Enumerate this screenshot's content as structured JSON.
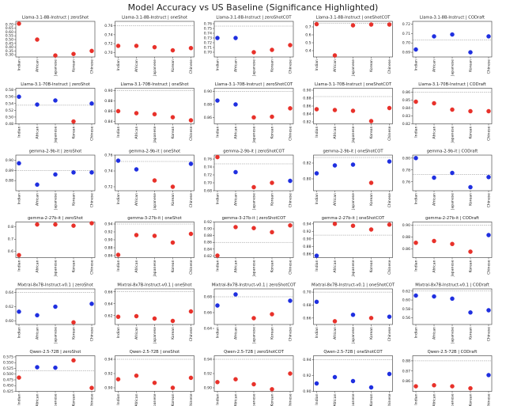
{
  "title": "Model Accuracy vs US Baseline (Significance Highlighted)",
  "chart_data": [
    {
      "type": "scatter",
      "title": "Llama-3.1-8B-Instruct | zeroShot",
      "categories": [
        "Indian",
        "African",
        "Japanese",
        "Korean",
        "Chinese"
      ],
      "values": [
        0.71,
        0.5,
        0.29,
        0.31,
        0.35
      ],
      "point_colors": [
        "#e8312a",
        "#e8312a",
        "#e8312a",
        "#e8312a",
        "#e8312a"
      ],
      "ylim": [
        0.27,
        0.74
      ],
      "yticks": [
        {
          "value": 0.3,
          "label": "0.30"
        },
        0.35,
        {
          "value": 0.4,
          "label": "0.40"
        },
        0.45,
        {
          "value": 0.5,
          "label": "0.50"
        },
        0.55,
        {
          "value": 0.6,
          "label": "0.60"
        },
        0.65,
        {
          "value": 0.7,
          "label": "0.70"
        }
      ]
    },
    {
      "type": "scatter",
      "title": "Llama-3.1-8B-Instruct | oneShot",
      "categories": [
        "Indian",
        "African",
        "Japanese",
        "Korean",
        "Chinese"
      ],
      "values": [
        0.715,
        0.715,
        0.712,
        0.705,
        0.71
      ],
      "point_colors": [
        "#e8312a",
        "#e8312a",
        "#e8312a",
        "#e8312a",
        "#e8312a"
      ],
      "baseline": 0.76,
      "ylim": [
        0.69,
        0.77
      ],
      "yticks": [
        {
          "value": 0.7,
          "label": "0.70"
        },
        0.72,
        0.74,
        0.76
      ]
    },
    {
      "type": "scatter",
      "title": "Llama-3.1-8B-Instruct | zeroShotCOT",
      "categories": [
        "Indian",
        "African",
        "Japanese",
        "Korean",
        "Chinese"
      ],
      "values": [
        0.73,
        0.73,
        0.7,
        0.705,
        0.715
      ],
      "point_colors": [
        "#1f2fe0",
        "#1f2fe0",
        "#e8312a",
        "#e8312a",
        "#e8312a"
      ],
      "baseline": 0.755,
      "ylim": [
        0.69,
        0.765
      ],
      "yticks": [
        {
          "value": 0.7,
          "label": "0.70"
        },
        0.71,
        0.72,
        0.73,
        0.74,
        0.75,
        0.76
      ]
    },
    {
      "type": "scatter",
      "title": "Llama-3.1-8B-Instruct | oneShotCOT",
      "categories": [
        "Indian",
        "African",
        "Japanese",
        "Korean",
        "Chinese"
      ],
      "values": [
        0.735,
        0.34,
        0.72,
        0.73,
        0.73
      ],
      "point_colors": [
        "#e8312a",
        "#e8312a",
        "#e8312a",
        "#e8312a",
        "#e8312a"
      ],
      "baseline": 0.745,
      "ylim": [
        0.32,
        0.77
      ],
      "yticks": [
        0.4,
        0.5,
        0.6,
        0.7
      ]
    },
    {
      "type": "scatter",
      "title": "Llama-3.1-8B-Instruct | CODraft",
      "categories": [
        "Indian",
        "African",
        "Japanese",
        "Korean",
        "Chinese"
      ],
      "values": [
        0.693,
        0.707,
        0.709,
        0.69,
        0.707
      ],
      "point_colors": [
        "#1f2fe0",
        "#1f2fe0",
        "#1f2fe0",
        "#1f2fe0",
        "#1f2fe0"
      ],
      "baseline": 0.703,
      "ylim": [
        0.685,
        0.723
      ],
      "yticks": [
        0.69,
        {
          "value": 0.7,
          "label": "0.70"
        },
        0.71,
        0.72
      ]
    },
    {
      "type": "scatter",
      "title": "Llama-3.1-70B-Instruct | zeroShot",
      "categories": [
        "Indian",
        "African",
        "Japanese",
        "Korean",
        "Chinese"
      ],
      "values": [
        0.56,
        0.537,
        0.549,
        0.487,
        0.54
      ],
      "point_colors": [
        "#1f2fe0",
        "#1f2fe0",
        "#1f2fe0",
        "#e8312a",
        "#1f2fe0"
      ],
      "baseline": 0.535,
      "ylim": [
        0.48,
        0.585
      ],
      "yticks": [
        0.48,
        {
          "value": 0.5,
          "label": "0.50"
        },
        0.52,
        0.54,
        0.56,
        0.58
      ]
    },
    {
      "type": "scatter",
      "title": "Llama-3.1-70B-Instruct | oneShot",
      "categories": [
        "Indian",
        "African",
        "Japanese",
        "Korean",
        "Chinese"
      ],
      "values": [
        0.86,
        0.856,
        0.854,
        0.848,
        0.842
      ],
      "point_colors": [
        "#e8312a",
        "#e8312a",
        "#e8312a",
        "#e8312a",
        "#e8312a"
      ],
      "baseline": 0.9,
      "ylim": [
        0.835,
        0.905
      ],
      "yticks": [
        0.84,
        0.86,
        0.88,
        {
          "value": 0.9,
          "label": "0.90"
        }
      ]
    },
    {
      "type": "scatter",
      "title": "Llama-3.1-70B-Instruct | zeroShotCOT",
      "categories": [
        "Indian",
        "African",
        "Japanese",
        "Korean",
        "Chinese"
      ],
      "values": [
        0.886,
        0.88,
        0.86,
        0.861,
        0.874
      ],
      "point_colors": [
        "#1f2fe0",
        "#1f2fe0",
        "#e8312a",
        "#e8312a",
        "#e8312a"
      ],
      "baseline": 0.9,
      "ylim": [
        0.85,
        0.905
      ],
      "yticks": [
        0.86,
        0.88,
        {
          "value": 0.9,
          "label": "0.90"
        }
      ]
    },
    {
      "type": "scatter",
      "title": "Llama-3.1-70B-Instruct | oneShotCOT",
      "categories": [
        "Indian",
        "African",
        "Japanese",
        "Korean",
        "Chinese"
      ],
      "values": [
        0.852,
        0.85,
        0.848,
        0.822,
        0.855
      ],
      "point_colors": [
        "#e8312a",
        "#e8312a",
        "#e8312a",
        "#e8312a",
        "#e8312a"
      ],
      "baseline": 0.884,
      "ylim": [
        0.815,
        0.905
      ],
      "yticks": [
        0.82,
        0.84,
        0.86,
        0.88,
        {
          "value": 0.9,
          "label": "0.90"
        }
      ]
    },
    {
      "type": "scatter",
      "title": "Llama-3.1-70B-Instruct | CODraft",
      "categories": [
        "Indian",
        "African",
        "Japanese",
        "Korean",
        "Chinese"
      ],
      "values": [
        0.848,
        0.846,
        0.838,
        0.836,
        0.836
      ],
      "point_colors": [
        "#e8312a",
        "#e8312a",
        "#e8312a",
        "#e8312a",
        "#e8312a"
      ],
      "baseline": 0.86,
      "ylim": [
        0.82,
        0.865
      ],
      "yticks": [
        0.82,
        0.83,
        0.84,
        0.85,
        0.86
      ]
    },
    {
      "type": "scatter",
      "title": "gemma-2-9b-it | zeroShot",
      "categories": [
        "Indian",
        "African",
        "Japanese",
        "Korean",
        "Chinese"
      ],
      "values": [
        0.897,
        0.876,
        0.886,
        0.888,
        0.888
      ],
      "point_colors": [
        "#1f2fe0",
        "#1f2fe0",
        "#1f2fe0",
        "#1f2fe0",
        "#1f2fe0"
      ],
      "baseline": 0.89,
      "ylim": [
        0.87,
        0.905
      ],
      "yticks": [
        0.88,
        0.89,
        {
          "value": 0.9,
          "label": "0.90"
        }
      ]
    },
    {
      "type": "scatter",
      "title": "gemma-2-9b-it | oneShot",
      "categories": [
        "Indian",
        "African",
        "Japanese",
        "Korean",
        "Chinese"
      ],
      "values": [
        0.753,
        0.742,
        0.728,
        0.72,
        0.749
      ],
      "point_colors": [
        "#1f2fe0",
        "#1f2fe0",
        "#e8312a",
        "#e8312a",
        "#1f2fe0"
      ],
      "baseline": 0.752,
      "ylim": [
        0.715,
        0.76
      ],
      "yticks": [
        0.72,
        0.74,
        0.76
      ]
    },
    {
      "type": "scatter",
      "title": "gemma-2-9b-it | zeroShotCOT",
      "categories": [
        "Indian",
        "African",
        "Japanese",
        "Korean",
        "Chinese"
      ],
      "values": [
        0.765,
        0.727,
        0.689,
        0.7,
        0.705
      ],
      "point_colors": [
        "#e8312a",
        "#1f2fe0",
        "#e8312a",
        "#e8312a",
        "#1f2fe0"
      ],
      "baseline": 0.748,
      "ylim": [
        0.68,
        0.77
      ],
      "yticks": [
        0.68,
        {
          "value": 0.7,
          "label": "0.70"
        },
        0.72,
        0.74,
        0.76
      ]
    },
    {
      "type": "scatter",
      "title": "gemma-2-9b-it | oneShotCOT",
      "categories": [
        "Indian",
        "African",
        "Japanese",
        "Korean",
        "Chinese"
      ],
      "values": [
        0.807,
        0.817,
        0.818,
        0.795,
        0.822
      ],
      "point_colors": [
        "#1f2fe0",
        "#1f2fe0",
        "#1f2fe0",
        "#e8312a",
        "#1f2fe0"
      ],
      "baseline": 0.827,
      "ylim": [
        0.785,
        0.83
      ],
      "yticks": [
        {
          "value": 0.8,
          "label": "0.80"
        },
        0.82
      ]
    },
    {
      "type": "scatter",
      "title": "gemma-2-9b-it | CODraft",
      "categories": [
        "Indian",
        "African",
        "Japanese",
        "Korean",
        "Chinese"
      ],
      "values": [
        0.8,
        0.767,
        0.775,
        0.751,
        0.768
      ],
      "point_colors": [
        "#1f2fe0",
        "#1f2fe0",
        "#1f2fe0",
        "#1f2fe0",
        "#1f2fe0"
      ],
      "baseline": 0.772,
      "ylim": [
        0.745,
        0.805
      ],
      "yticks": [
        0.76,
        0.78,
        {
          "value": 0.8,
          "label": "0.80"
        }
      ]
    },
    {
      "type": "scatter",
      "title": "gemma-2-27b-it | zeroShot",
      "categories": [
        "Indian",
        "African",
        "Japanese",
        "Korean",
        "Chinese"
      ],
      "values": [
        0.57,
        0.82,
        0.82,
        0.81,
        0.83
      ],
      "point_colors": [
        "#e8312a",
        "#e8312a",
        "#e8312a",
        "#e8312a",
        "#e8312a"
      ],
      "ylim": [
        0.55,
        0.84
      ],
      "yticks": [
        0.6,
        0.7,
        0.8
      ]
    },
    {
      "type": "scatter",
      "title": "gemma-3-27b-it | oneShot",
      "categories": [
        "Indian",
        "African",
        "Japanese",
        "Korean",
        "Chinese"
      ],
      "values": [
        0.862,
        0.912,
        0.91,
        0.893,
        0.915
      ],
      "point_colors": [
        "#e8312a",
        "#e8312a",
        "#e8312a",
        "#e8312a",
        "#e8312a"
      ],
      "baseline": 0.94,
      "ylim": [
        0.855,
        0.945
      ],
      "yticks": [
        0.86,
        0.88,
        {
          "value": 0.9,
          "label": "0.90"
        },
        0.92,
        0.94
      ]
    },
    {
      "type": "scatter",
      "title": "gemma-3-27b-it | zeroShotCOT",
      "categories": [
        "Indian",
        "African",
        "Japanese",
        "Korean",
        "Chinese"
      ],
      "values": [
        0.821,
        0.905,
        0.902,
        0.89,
        0.91
      ],
      "point_colors": [
        "#e8312a",
        "#e8312a",
        "#e8312a",
        "#e8312a",
        "#e8312a"
      ],
      "baseline": 0.86,
      "ylim": [
        0.815,
        0.92
      ],
      "yticks": [
        0.82,
        0.84,
        0.86,
        0.88,
        {
          "value": 0.9,
          "label": "0.90"
        },
        0.92
      ]
    },
    {
      "type": "scatter",
      "title": "gemma-2-27b-it | oneShotCOT",
      "categories": [
        "Indian",
        "African",
        "Japanese",
        "Korean",
        "Chinese"
      ],
      "values": [
        0.855,
        0.94,
        0.935,
        0.925,
        0.938
      ],
      "point_colors": [
        "#1f2fe0",
        "#e8312a",
        "#e8312a",
        "#e8312a",
        "#e8312a"
      ],
      "baseline": 0.91,
      "ylim": [
        0.85,
        0.945
      ],
      "yticks": [
        0.86,
        0.88,
        {
          "value": 0.9,
          "label": "0.90"
        },
        0.92,
        0.94
      ]
    },
    {
      "type": "scatter",
      "title": "gemma-2-27b-it | CODraft",
      "categories": [
        "Indian",
        "African",
        "Japanese",
        "Korean",
        "Chinese"
      ],
      "values": [
        0.87,
        0.873,
        0.868,
        0.855,
        0.883
      ],
      "point_colors": [
        "#e8312a",
        "#e8312a",
        "#e8312a",
        "#e8312a",
        "#1f2fe0"
      ],
      "baseline": 0.9,
      "ylim": [
        0.845,
        0.905
      ],
      "yticks": [
        0.86,
        0.88,
        {
          "value": 0.9,
          "label": "0.90"
        }
      ]
    },
    {
      "type": "scatter",
      "title": "Mixtral-8x7B-Instruct-v0.1 | zeroShot",
      "categories": [
        "Indian",
        "African",
        "Japanese",
        "Korean",
        "Chinese"
      ],
      "values": [
        0.613,
        0.608,
        0.62,
        0.598,
        0.624
      ],
      "point_colors": [
        "#1f2fe0",
        "#1f2fe0",
        "#1f2fe0",
        "#e8312a",
        "#1f2fe0"
      ],
      "baseline": 0.64,
      "ylim": [
        0.595,
        0.645
      ],
      "yticks": [
        {
          "value": 0.6,
          "label": "0.60"
        },
        0.62,
        0.64
      ]
    },
    {
      "type": "scatter",
      "title": "Mixtral-8x7B-Instruct-v0.1 | oneShot",
      "categories": [
        "Indian",
        "African",
        "Japanese",
        "Korean",
        "Chinese"
      ],
      "values": [
        0.618,
        0.619,
        0.615,
        0.611,
        0.627
      ],
      "point_colors": [
        "#e8312a",
        "#e8312a",
        "#e8312a",
        "#e8312a",
        "#e8312a"
      ],
      "baseline": 0.66,
      "ylim": [
        0.605,
        0.665
      ],
      "yticks": [
        0.62,
        0.64,
        0.66
      ]
    },
    {
      "type": "scatter",
      "title": "Mixtral-8x7B-Instruct-v0.1 | zeroShotCOT",
      "categories": [
        "Indian",
        "African",
        "Japanese",
        "Korean",
        "Chinese"
      ],
      "values": [
        0.669,
        0.683,
        0.653,
        0.658,
        0.675
      ],
      "point_colors": [
        "#1f2fe0",
        "#1f2fe0",
        "#e8312a",
        "#e8312a",
        "#1f2fe0"
      ],
      "baseline": 0.68,
      "ylim": [
        0.645,
        0.69
      ],
      "yticks": [
        0.64,
        0.66,
        0.68
      ]
    },
    {
      "type": "scatter",
      "title": "Mixtral-8x7B-Instruct-v0.1 | oneShotCOT",
      "categories": [
        "Indian",
        "African",
        "Japanese",
        "Korean",
        "Chinese"
      ],
      "values": [
        0.685,
        0.655,
        0.665,
        0.66,
        0.662
      ],
      "point_colors": [
        "#1f2fe0",
        "#e8312a",
        "#1f2fe0",
        "#e8312a",
        "#1f2fe0"
      ],
      "baseline": 0.7,
      "ylim": [
        0.65,
        0.705
      ],
      "yticks": [
        0.66,
        0.68,
        {
          "value": 0.7,
          "label": "0.70"
        }
      ]
    },
    {
      "type": "scatter",
      "title": "Mixtral-8x7B-Instruct-v0.1 | CODraft",
      "categories": [
        "Indian",
        "African",
        "Japanese",
        "Korean",
        "Chinese"
      ],
      "values": [
        0.61,
        0.608,
        0.603,
        0.572,
        0.577
      ],
      "point_colors": [
        "#1f2fe0",
        "#1f2fe0",
        "#1f2fe0",
        "#1f2fe0",
        "#1f2fe0"
      ],
      "baseline": 0.62,
      "ylim": [
        0.545,
        0.625
      ],
      "yticks": [
        0.56,
        0.58,
        {
          "value": 0.6,
          "label": "0.60"
        },
        0.62
      ]
    },
    {
      "type": "scatter",
      "title": "Qwen-2.5-72B | zeroShot",
      "categories": [
        "Indian",
        "African",
        "Japanese",
        "Korean",
        "Chinese"
      ],
      "values": [
        0.485,
        0.53,
        0.528,
        0.56,
        0.44
      ],
      "point_colors": [
        "#e8312a",
        "#1f2fe0",
        "#1f2fe0",
        "#e8312a",
        "#e8312a"
      ],
      "baseline": 0.515,
      "ylim": [
        0.425,
        0.58
      ],
      "yticks": [
        0.425,
        {
          "value": 0.45,
          "label": "0.450"
        },
        0.475,
        {
          "value": 0.5,
          "label": "0.500"
        },
        0.525,
        {
          "value": 0.55,
          "label": "0.550"
        },
        0.575
      ]
    },
    {
      "type": "scatter",
      "title": "Qwen-2.5-72B | oneShot",
      "categories": [
        "Indian",
        "African",
        "Japanese",
        "Korean",
        "Chinese"
      ],
      "values": [
        0.912,
        0.917,
        0.907,
        0.9,
        0.914
      ],
      "point_colors": [
        "#e8312a",
        "#e8312a",
        "#e8312a",
        "#e8312a",
        "#e8312a"
      ],
      "baseline": 0.94,
      "ylim": [
        0.895,
        0.945
      ],
      "yticks": [
        {
          "value": 0.9,
          "label": "0.90"
        },
        0.92,
        0.94
      ]
    },
    {
      "type": "scatter",
      "title": "Qwen-2.5-72B | zeroShotCOT",
      "categories": [
        "Indian",
        "African",
        "Japanese",
        "Korean",
        "Chinese"
      ],
      "values": [
        0.908,
        0.912,
        0.905,
        0.898,
        0.92
      ],
      "point_colors": [
        "#e8312a",
        "#e8312a",
        "#e8312a",
        "#e8312a",
        "#e8312a"
      ],
      "baseline": 0.94,
      "ylim": [
        0.895,
        0.945
      ],
      "yticks": [
        {
          "value": 0.9,
          "label": "0.90"
        },
        0.92,
        0.94
      ]
    },
    {
      "type": "scatter",
      "title": "Qwen-2.5-72B | oneShotCOT",
      "categories": [
        "Indian",
        "African",
        "Japanese",
        "Korean",
        "Chinese"
      ],
      "values": [
        0.91,
        0.918,
        0.913,
        0.905,
        0.922
      ],
      "point_colors": [
        "#1f2fe0",
        "#1f2fe0",
        "#1f2fe0",
        "#1f2fe0",
        "#1f2fe0"
      ],
      "baseline": 0.94,
      "ylim": [
        0.9,
        0.945
      ],
      "yticks": [
        {
          "value": 0.9,
          "label": "0.90"
        },
        0.92,
        0.94
      ]
    },
    {
      "type": "scatter",
      "title": "Qwen-2.5-72B | CODraft",
      "categories": [
        "Indian",
        "African",
        "Japanese",
        "Korean",
        "Chinese"
      ],
      "values": [
        0.855,
        0.856,
        0.855,
        0.853,
        0.866
      ],
      "point_colors": [
        "#e8312a",
        "#e8312a",
        "#e8312a",
        "#e8312a",
        "#1f2fe0"
      ],
      "baseline": 0.88,
      "ylim": [
        0.85,
        0.885
      ],
      "yticks": [
        0.86,
        0.87,
        0.88
      ]
    }
  ]
}
